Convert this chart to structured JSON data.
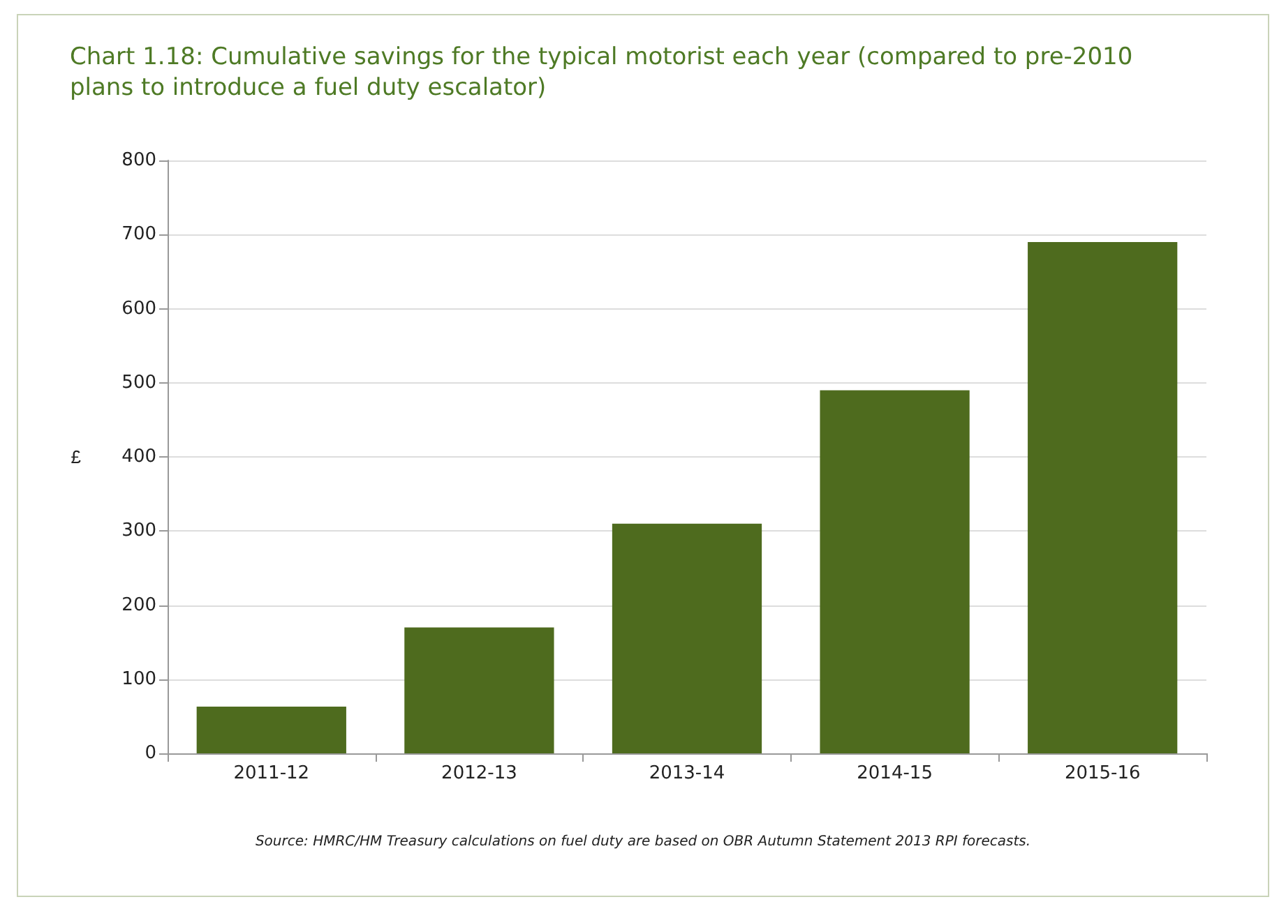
{
  "chart_data": {
    "type": "bar",
    "title": "Chart 1.18: Cumulative savings for the typical motorist each year (compared to pre-2010 plans to introduce a fuel duty escalator)",
    "ylabel": "£",
    "categories": [
      "2011-12",
      "2012-13",
      "2013-14",
      "2014-15",
      "2015-16"
    ],
    "values": [
      63,
      170,
      310,
      490,
      690
    ],
    "color": "#4e6b1e",
    "ylim": [
      0,
      800
    ],
    "yticks": [
      0,
      100,
      200,
      300,
      400,
      500,
      600,
      700,
      800
    ],
    "grid": "y",
    "annotations": [
      "Source: HMRC/HM Treasury calculations on fuel duty are based on OBR Autumn Statement 2013 RPI forecasts."
    ]
  }
}
